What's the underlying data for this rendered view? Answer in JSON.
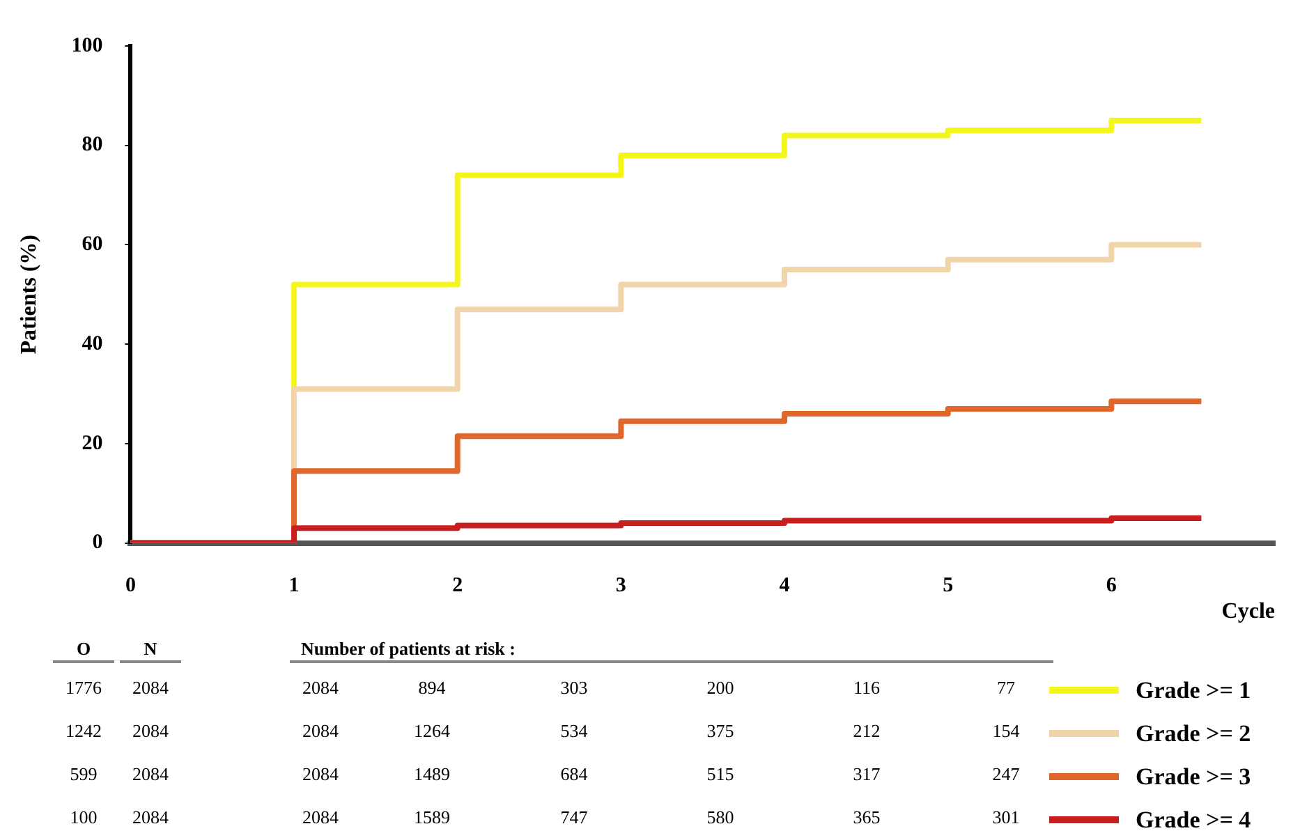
{
  "chart_data": {
    "type": "step",
    "xlabel": "Cycle",
    "ylabel": "Patients (%)",
    "x": [
      0,
      1,
      2,
      3,
      4,
      5,
      6,
      6.55
    ],
    "series": [
      {
        "name": "Grade >= 1",
        "color": "#f5f51e",
        "values": [
          0,
          52,
          74,
          78,
          82,
          83,
          85,
          85
        ]
      },
      {
        "name": "Grade >= 2",
        "color": "#f2d4aa",
        "values": [
          0,
          31,
          47,
          52,
          55,
          57,
          60,
          60
        ]
      },
      {
        "name": "Grade >= 3",
        "color": "#e0662a",
        "values": [
          0,
          14.5,
          21.5,
          24.5,
          26,
          27,
          28.5,
          28.5
        ]
      },
      {
        "name": "Grade >= 4",
        "color": "#c81e1e",
        "values": [
          0,
          3,
          3.5,
          4,
          4.5,
          4.5,
          5,
          5
        ]
      }
    ],
    "xlim": [
      0,
      7
    ],
    "xticks": [
      0,
      1,
      2,
      3,
      4,
      5,
      6
    ],
    "ylim": [
      0,
      100
    ],
    "yticks": [
      0,
      20,
      40,
      60,
      80,
      100
    ],
    "grid": false,
    "legend": "bottom right",
    "marker": "none",
    "line_style": "solid",
    "annotations": [
      "O",
      "N",
      "Number of patients at risk :",
      "1776",
      "2084",
      "2084",
      "894",
      "303",
      "200",
      "116",
      "77",
      "1242",
      "2084",
      "2084",
      "1264",
      "534",
      "375",
      "212",
      "154",
      "599",
      "2084",
      "2084",
      "1489",
      "684",
      "515",
      "317",
      "247",
      "100",
      "2084",
      "2084",
      "1589",
      "747",
      "580",
      "365",
      "301"
    ]
  }
}
